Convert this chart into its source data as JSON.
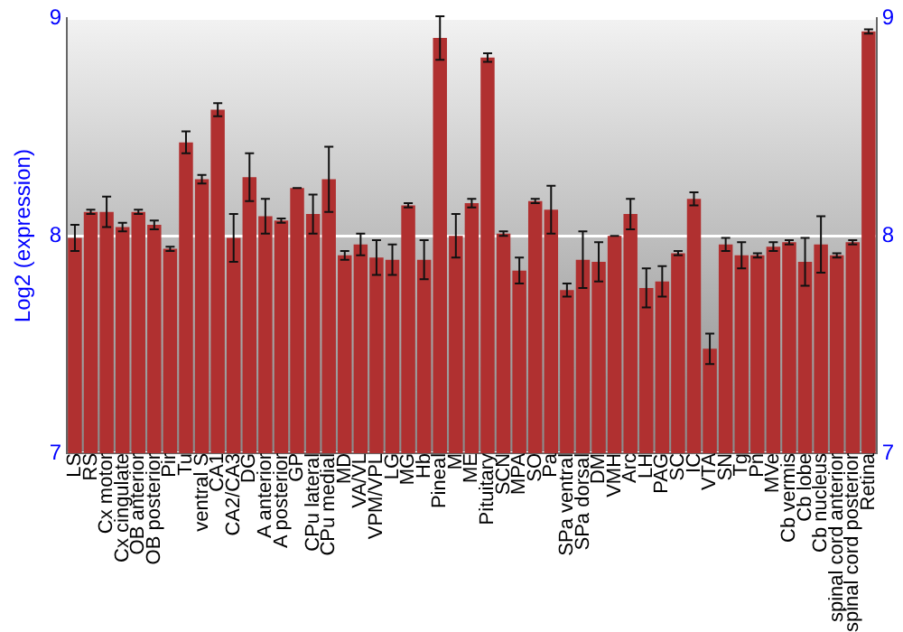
{
  "chart_data": {
    "type": "bar",
    "ylabel": "Log2 (expression)",
    "categories": [
      "LS",
      "RS",
      "Cx motor",
      "Cx cingulate",
      "OB anterior",
      "OB posterior",
      "Pir",
      "Tu",
      "ventral S",
      "CA1",
      "CA2/CA3",
      "DG",
      "A anterior",
      "A posterior",
      "GP",
      "CPu lateral",
      "CPu medial",
      "MD",
      "VA/VL",
      "VPM/VPL",
      "LG",
      "MG",
      "Hb",
      "Pineal",
      "M",
      "ME",
      "Pituitary",
      "SCN",
      "MPA",
      "SO",
      "Pa",
      "SPa ventral",
      "SPa dorsal",
      "DM",
      "VMH",
      "Arc",
      "LH",
      "PAG",
      "SC",
      "IC",
      "VTA",
      "SN",
      "Tg",
      "Pn",
      "MVe",
      "Cb vermis",
      "Cb lobe",
      "Cb nucleus",
      "spinal cord anterior",
      "spinal cord posterior",
      "Retina"
    ],
    "series": [
      {
        "color": "#b03030",
        "values": [
          7.99,
          8.11,
          8.11,
          8.04,
          8.11,
          8.05,
          7.94,
          8.43,
          8.26,
          8.58,
          7.99,
          8.27,
          8.09,
          8.07,
          8.22,
          8.1,
          8.26,
          7.91,
          7.96,
          7.9,
          7.89,
          8.14,
          7.89,
          8.91,
          8.0,
          8.15,
          8.82,
          8.01,
          7.84,
          8.16,
          8.12,
          7.75,
          7.89,
          7.88,
          8.0,
          8.1,
          7.76,
          7.79,
          7.92,
          8.17,
          7.48,
          7.96,
          7.91,
          7.91,
          7.95,
          7.97,
          7.88,
          7.96,
          7.91,
          7.97,
          8.94
        ],
        "errors": [
          0.06,
          0.01,
          0.07,
          0.02,
          0.01,
          0.02,
          0.01,
          0.05,
          0.02,
          0.03,
          0.11,
          0.11,
          0.08,
          0.01,
          0.0,
          0.09,
          0.15,
          0.02,
          0.05,
          0.08,
          0.07,
          0.01,
          0.09,
          0.1,
          0.1,
          0.02,
          0.02,
          0.01,
          0.06,
          0.01,
          0.11,
          0.03,
          0.13,
          0.09,
          0.0,
          0.07,
          0.09,
          0.07,
          0.01,
          0.03,
          0.07,
          0.03,
          0.06,
          0.01,
          0.02,
          0.01,
          0.11,
          0.13,
          0.01,
          0.01,
          0.01
        ]
      }
    ],
    "ylim": [
      7,
      9
    ],
    "yticks": [
      7,
      8,
      9
    ],
    "y2lim": [
      7,
      9
    ],
    "y2ticks": [
      7,
      8,
      9
    ],
    "grid": "y",
    "legend": false
  }
}
